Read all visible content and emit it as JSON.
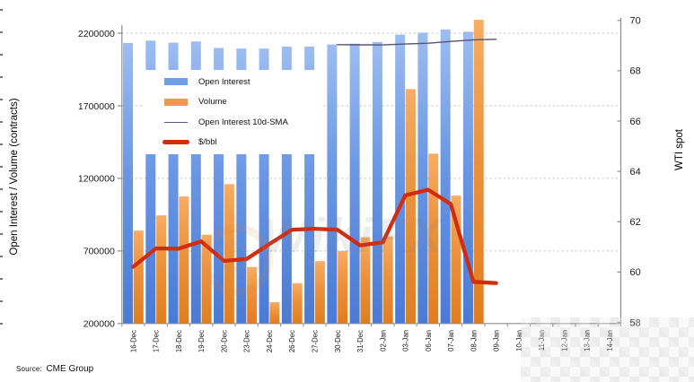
{
  "source_note": {
    "prefix": "Source:",
    "text": "CME Group"
  },
  "watermark": {
    "text": "WikiFX"
  },
  "legend": {
    "items": [
      {
        "label": "Open Interest",
        "type": "bar",
        "color": "#6f9de6"
      },
      {
        "label": "Volume",
        "type": "bar",
        "color": "#ec9a4b"
      },
      {
        "label": "Open Interest 10d-SMA",
        "type": "thin-line",
        "color": "#55517a"
      },
      {
        "label": "$/bbl",
        "type": "thick-line",
        "color": "#d12c0e"
      }
    ]
  },
  "chart_data": {
    "type": "combo",
    "title": "",
    "categories": [
      "16-Dec",
      "17-Dec",
      "18-Dec",
      "19-Dec",
      "20-Dec",
      "23-Dec",
      "24-Dec",
      "26-Dec",
      "27-Dec",
      "30-Dec",
      "31-Dec",
      "02-Jan",
      "03-Jan",
      "06-Jan",
      "07-Jan",
      "08-Jan",
      "09-Jan",
      "10-Jan",
      "11-Jan",
      "12-Jan",
      "13-Jan",
      "14-Jan"
    ],
    "left_axis": {
      "title": "Open Interest / Volume (contracts)",
      "ticks": [
        "2200000",
        "1700000",
        "1200000",
        "700000",
        "200000"
      ],
      "tick_values": [
        2200000,
        1700000,
        1200000,
        700000,
        200000
      ],
      "grid_values": [
        2200000,
        1700000,
        1200000,
        700000
      ],
      "lim": [
        200000,
        2200000
      ]
    },
    "right_axis": {
      "title": "WTI spot",
      "ticks": [
        "70",
        "68",
        "66",
        "64",
        "62",
        "60",
        "58"
      ],
      "tick_values": [
        70,
        68,
        66,
        64,
        62,
        60,
        58
      ],
      "lim": [
        58,
        70
      ]
    },
    "grid": true,
    "legend_position": "upper-left-inside",
    "series": [
      {
        "name": "Open Interest",
        "type": "bar",
        "axis": "left",
        "color": "#6f9de6",
        "values": [
          2133000,
          2149000,
          2135000,
          2143000,
          2098000,
          2094000,
          2094000,
          2108000,
          2108000,
          2122000,
          2128000,
          2139000,
          2190000,
          2204000,
          2226000,
          2210000,
          null,
          null,
          null,
          null,
          null,
          null
        ]
      },
      {
        "name": "Volume",
        "type": "bar",
        "axis": "left",
        "color": "#ec9a4b",
        "values": [
          840000,
          945000,
          1075000,
          812000,
          1160000,
          590000,
          347000,
          478000,
          630000,
          700000,
          795000,
          800000,
          1815000,
          1370000,
          1081000,
          2292000,
          null,
          null,
          null,
          null,
          null,
          null
        ]
      },
      {
        "name": "Open Interest 10d-SMA",
        "type": "line",
        "axis": "left",
        "color": "#55517a",
        "values": [
          null,
          null,
          null,
          null,
          null,
          null,
          null,
          null,
          null,
          2121000,
          2120000,
          2119000,
          2125000,
          2131000,
          2143000,
          2154000,
          2158000,
          null,
          null,
          null,
          null,
          null
        ]
      },
      {
        "name": "$/bbl",
        "type": "line",
        "axis": "right",
        "color": "#d12c0e",
        "values": [
          60.21,
          60.94,
          60.93,
          61.22,
          60.44,
          60.52,
          61.11,
          61.68,
          61.72,
          61.68,
          61.06,
          61.18,
          63.05,
          63.27,
          62.7,
          59.61,
          59.56,
          null,
          null,
          null,
          null,
          null
        ]
      }
    ]
  }
}
